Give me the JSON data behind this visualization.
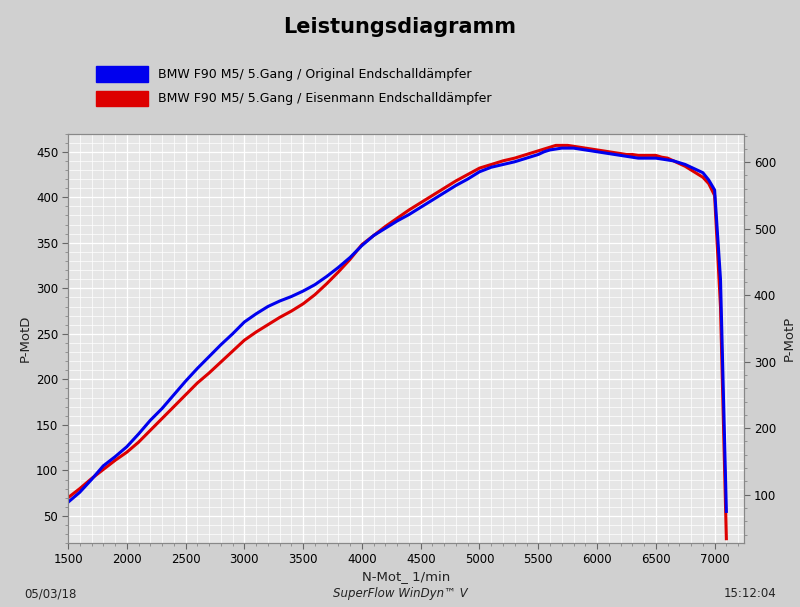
{
  "title": "Leistungsdiagramm",
  "title_fontsize": 15,
  "title_fontweight": "bold",
  "legend_entries": [
    "BMW F90 M5/ 5.Gang / Original Endschalldämpfer",
    "BMW F90 M5/ 5.Gang / Eisenmann Endschalldämpfer"
  ],
  "legend_colors": [
    "#0000ee",
    "#dd0000"
  ],
  "xlabel": "N-Mot_ 1/min",
  "ylabel_left": "P-MotD",
  "ylabel_right": "P-MotP",
  "xlim": [
    1500,
    7250
  ],
  "ylim_left": [
    20,
    470
  ],
  "ylim_right": [
    27,
    643
  ],
  "xticks": [
    1500,
    2000,
    2500,
    3000,
    3500,
    4000,
    4500,
    5000,
    5500,
    6000,
    6500,
    7000
  ],
  "yticks_left": [
    50,
    100,
    150,
    200,
    250,
    300,
    350,
    400,
    450
  ],
  "yticks_right": [
    100,
    200,
    300,
    400,
    500,
    600
  ],
  "footer_left": "05/03/18",
  "footer_center": "SuperFlow WinDyn™ V",
  "footer_right": "15:12:04",
  "plot_bg": "#e6e6e6",
  "fig_bg": "#d0d0d0",
  "grid_major_color": "#ffffff",
  "grid_minor_color": "#d8d8d8",
  "line_width": 2.2,
  "blue_color": "#0000ee",
  "red_color": "#dd0000",
  "blue_rpm": [
    1500,
    1600,
    1700,
    1800,
    1900,
    2000,
    2100,
    2200,
    2300,
    2400,
    2500,
    2600,
    2700,
    2800,
    2900,
    3000,
    3100,
    3200,
    3300,
    3400,
    3500,
    3600,
    3700,
    3800,
    3900,
    4000,
    4100,
    4200,
    4300,
    4400,
    4500,
    4600,
    4700,
    4800,
    4900,
    5000,
    5100,
    5200,
    5300,
    5400,
    5500,
    5550,
    5600,
    5650,
    5700,
    5750,
    5800,
    5850,
    5900,
    5950,
    6000,
    6050,
    6100,
    6150,
    6200,
    6250,
    6300,
    6350,
    6400,
    6450,
    6500,
    6550,
    6600,
    6650,
    6700,
    6750,
    6800,
    6850,
    6900,
    6950,
    7000,
    7050,
    7100
  ],
  "blue_power": [
    65,
    76,
    90,
    105,
    115,
    126,
    140,
    155,
    168,
    183,
    198,
    212,
    225,
    238,
    250,
    263,
    272,
    280,
    286,
    291,
    297,
    304,
    313,
    323,
    334,
    347,
    358,
    366,
    374,
    381,
    389,
    397,
    405,
    413,
    420,
    428,
    433,
    436,
    439,
    443,
    447,
    450,
    452,
    453,
    454,
    454,
    454,
    453,
    452,
    451,
    450,
    449,
    448,
    447,
    446,
    445,
    444,
    443,
    443,
    443,
    443,
    442,
    441,
    440,
    438,
    436,
    433,
    430,
    427,
    419,
    408,
    310,
    55
  ],
  "red_rpm": [
    1500,
    1600,
    1700,
    1800,
    1900,
    2000,
    2100,
    2200,
    2300,
    2400,
    2500,
    2600,
    2700,
    2800,
    2900,
    3000,
    3100,
    3200,
    3300,
    3400,
    3500,
    3600,
    3700,
    3800,
    3900,
    4000,
    4100,
    4200,
    4300,
    4400,
    4500,
    4600,
    4700,
    4800,
    4900,
    5000,
    5100,
    5200,
    5300,
    5400,
    5500,
    5550,
    5600,
    5650,
    5700,
    5750,
    5800,
    5850,
    5900,
    5950,
    6000,
    6050,
    6100,
    6150,
    6200,
    6250,
    6300,
    6350,
    6400,
    6450,
    6500,
    6550,
    6600,
    6650,
    6700,
    6750,
    6800,
    6850,
    6900,
    6950,
    7000,
    7050,
    7100
  ],
  "red_power": [
    70,
    80,
    91,
    101,
    111,
    120,
    131,
    144,
    157,
    170,
    183,
    196,
    207,
    219,
    231,
    243,
    252,
    260,
    268,
    275,
    283,
    293,
    305,
    318,
    332,
    348,
    358,
    368,
    377,
    386,
    394,
    402,
    410,
    418,
    425,
    432,
    436,
    440,
    443,
    447,
    451,
    453,
    455,
    457,
    457,
    457,
    456,
    455,
    454,
    453,
    452,
    451,
    450,
    449,
    448,
    447,
    447,
    446,
    446,
    446,
    446,
    444,
    443,
    440,
    437,
    434,
    430,
    426,
    422,
    415,
    402,
    280,
    25
  ]
}
